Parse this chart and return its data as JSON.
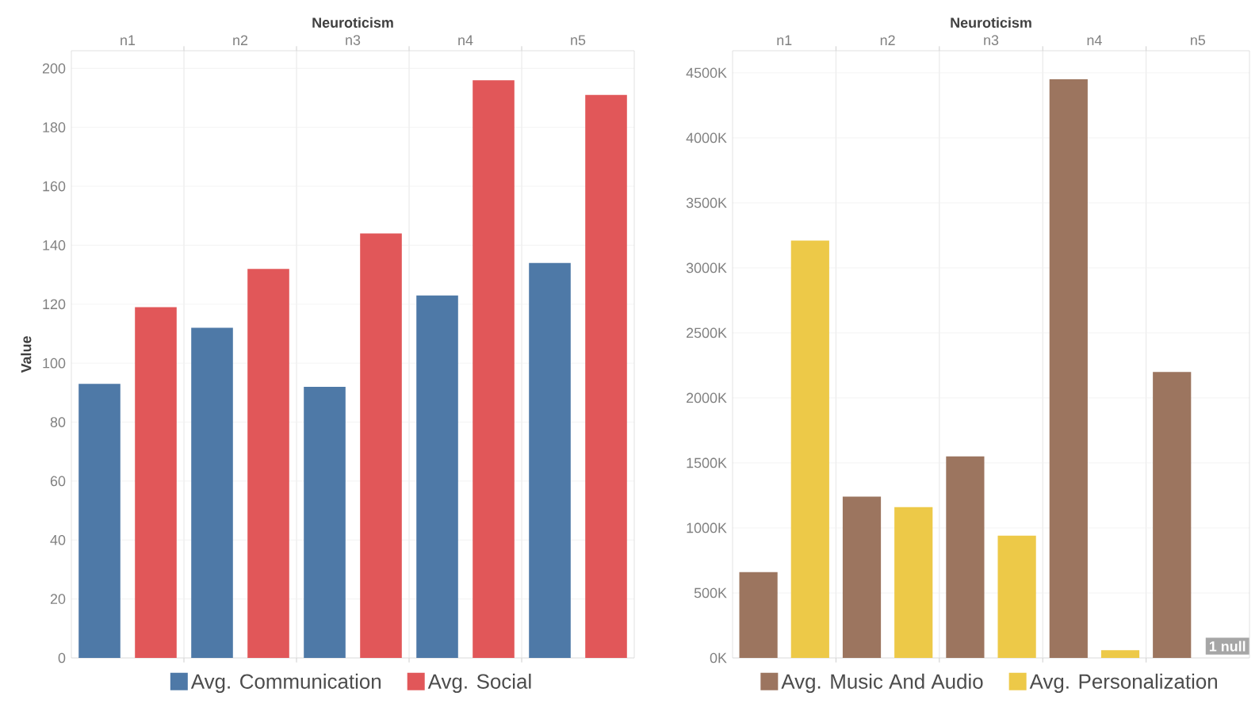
{
  "chart_data": [
    {
      "type": "bar",
      "xlabel": "Neuroticism",
      "ylabel": "Value",
      "categories": [
        "n1",
        "n2",
        "n3",
        "n4",
        "n5"
      ],
      "series": [
        {
          "name": "Avg. Communication",
          "color": "#4e79a7",
          "values": [
            93,
            112,
            92,
            123,
            134
          ]
        },
        {
          "name": "Avg. Social",
          "color": "#e15759",
          "values": [
            119,
            132,
            144,
            196,
            191
          ]
        }
      ],
      "ylim": [
        0,
        206
      ],
      "yticks": [
        0,
        20,
        40,
        60,
        80,
        100,
        120,
        140,
        160,
        180,
        200
      ],
      "grid": "y",
      "legend": "bottom"
    },
    {
      "type": "bar",
      "xlabel": "Neuroticism",
      "categories": [
        "n1",
        "n2",
        "n3",
        "n4",
        "n5"
      ],
      "series": [
        {
          "name": "Avg. Music And Audio",
          "color": "#9c755f",
          "values": [
            660000,
            1240000,
            1550000,
            4450000,
            2200000
          ]
        },
        {
          "name": "Avg. Personalization",
          "color": "#edc948",
          "values": [
            3210000,
            1160000,
            940000,
            60000,
            null
          ]
        }
      ],
      "ylim": [
        0,
        4670000
      ],
      "yticks": [
        {
          "value": 0,
          "label": "0K"
        },
        {
          "value": 500000,
          "label": "500K"
        },
        {
          "value": 1000000,
          "label": "1000K"
        },
        {
          "value": 1500000,
          "label": "1500K"
        },
        {
          "value": 2000000,
          "label": "2000K"
        },
        {
          "value": 2500000,
          "label": "2500K"
        },
        {
          "value": 3000000,
          "label": "3000K"
        },
        {
          "value": 3500000,
          "label": "3500K"
        },
        {
          "value": 4000000,
          "label": "4000K"
        },
        {
          "value": 4500000,
          "label": "4500K"
        }
      ],
      "grid": "y",
      "legend": "bottom",
      "annotations": [
        "1 null"
      ]
    }
  ]
}
